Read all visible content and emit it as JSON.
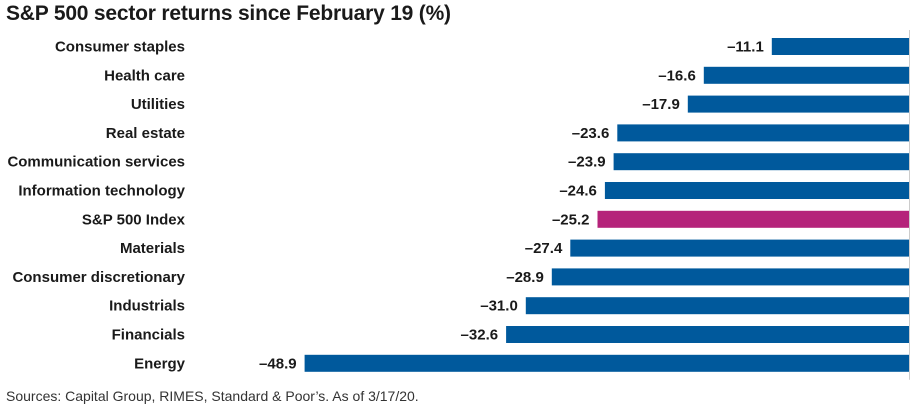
{
  "chart_data": {
    "type": "bar",
    "orientation": "horizontal",
    "title": "S&P 500 sector returns since February 19 (%)",
    "categories": [
      "Consumer staples",
      "Health care",
      "Utilities",
      "Real estate",
      "Communication services",
      "Information technology",
      "S&P 500 Index",
      "Materials",
      "Consumer discretionary",
      "Industrials",
      "Financials",
      "Energy"
    ],
    "values": [
      -11.1,
      -16.6,
      -17.9,
      -23.6,
      -23.9,
      -24.6,
      -25.2,
      -27.4,
      -28.9,
      -31.0,
      -32.6,
      -48.9
    ],
    "value_labels": [
      "–11.1",
      "–16.6",
      "–17.9",
      "–23.6",
      "–23.9",
      "–24.6",
      "–25.2",
      "–27.4",
      "–28.9",
      "–31.0",
      "–32.6",
      "–48.9"
    ],
    "highlight_category": "S&P 500 Index",
    "xlim": [
      -55,
      0
    ],
    "grid": false,
    "colors": {
      "bar": "#00599c",
      "highlight": "#b5237a"
    }
  },
  "footer": {
    "source": "Sources: Capital Group, RIMES, Standard & Poor’s. As of 3/17/20."
  }
}
